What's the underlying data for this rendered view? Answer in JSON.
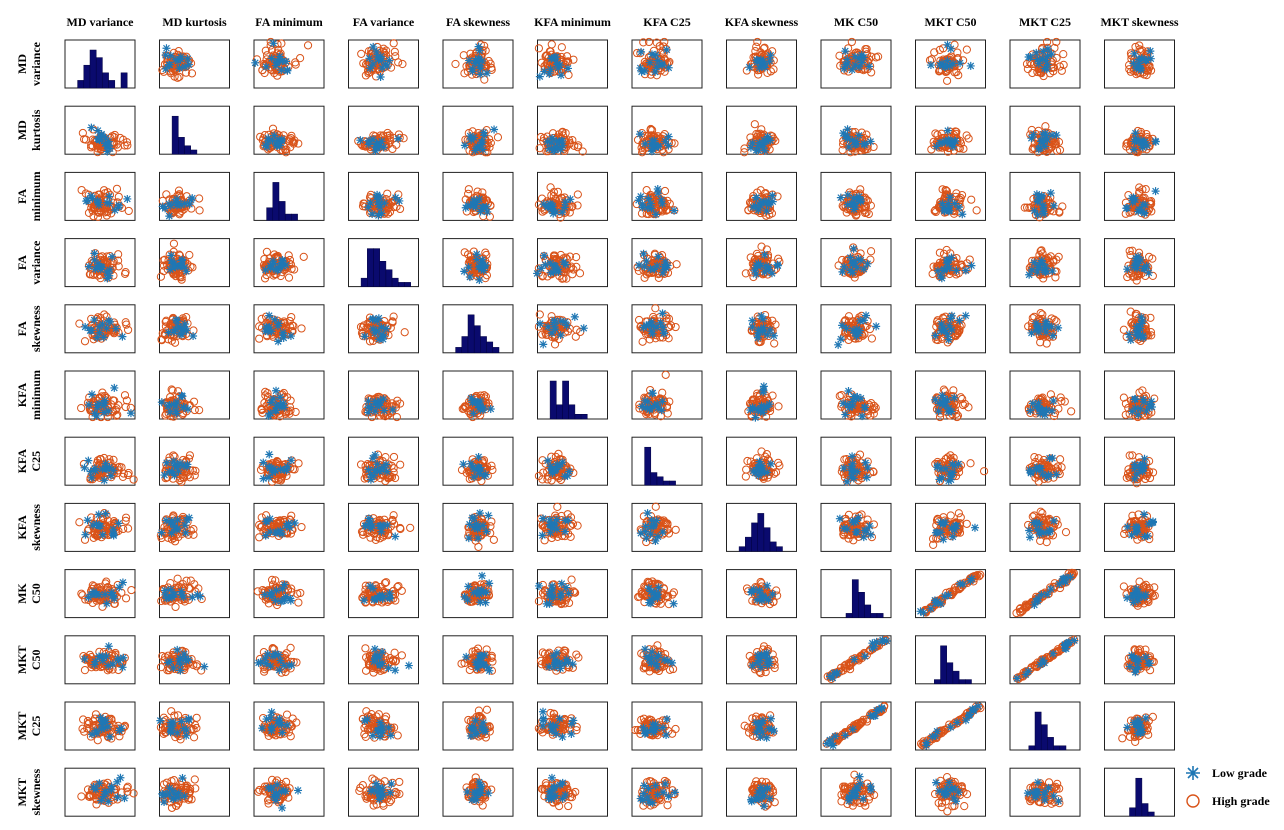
{
  "chart_data": {
    "type": "scatter",
    "subtype": "scatter-matrix",
    "variables": [
      {
        "col_label": "MD variance",
        "row_label": [
          "MD",
          "variance"
        ],
        "hist": [
          1,
          3,
          5,
          4,
          2,
          1,
          0,
          2
        ]
      },
      {
        "col_label": "MD kurtosis",
        "row_label": [
          "MD",
          "kurtosis"
        ],
        "hist": [
          9,
          4,
          2,
          1,
          0,
          0,
          0,
          0
        ]
      },
      {
        "col_label": "FA minimum",
        "row_label": [
          "FA",
          "minimum"
        ],
        "hist": [
          2,
          6,
          3,
          1,
          1,
          0,
          0,
          0
        ]
      },
      {
        "col_label": "FA variance",
        "row_label": [
          "FA",
          "variance"
        ],
        "hist": [
          2,
          9,
          9,
          6,
          4,
          2,
          1,
          1
        ]
      },
      {
        "col_label": "FA skewness",
        "row_label": [
          "FA",
          "skewness"
        ],
        "hist": [
          1,
          3,
          7,
          5,
          3,
          2,
          1,
          0
        ]
      },
      {
        "col_label": "KFA minimum",
        "row_label": [
          "KFA",
          "minimum"
        ],
        "hist": [
          8,
          3,
          8,
          3,
          1,
          1,
          0,
          0
        ]
      },
      {
        "col_label": "KFA C25",
        "row_label": [
          "KFA",
          "C25"
        ],
        "hist": [
          9,
          3,
          2,
          1,
          1,
          0,
          0,
          0
        ]
      },
      {
        "col_label": "KFA skewness",
        "row_label": [
          "KFA",
          "skewness"
        ],
        "hist": [
          1,
          3,
          6,
          8,
          5,
          2,
          1,
          0
        ]
      },
      {
        "col_label": "MK C50",
        "row_label": [
          "MK",
          "C50"
        ],
        "hist": [
          0,
          0,
          1,
          9,
          6,
          3,
          1,
          1
        ]
      },
      {
        "col_label": "MKT C50",
        "row_label": [
          "MKT",
          "C50"
        ],
        "hist": [
          0,
          1,
          9,
          5,
          3,
          1,
          1,
          0
        ]
      },
      {
        "col_label": "MKT C25",
        "row_label": [
          "MKT",
          "C25"
        ],
        "hist": [
          0,
          1,
          9,
          6,
          3,
          1,
          1,
          0
        ]
      },
      {
        "col_label": "MKT skewness",
        "row_label": [
          "MKT",
          "skewness"
        ],
        "hist": [
          0,
          0,
          2,
          9,
          3,
          1,
          0,
          0
        ]
      }
    ],
    "legend": [
      {
        "label": "Low grade",
        "marker": "asterisk",
        "color": "#1f77b4"
      },
      {
        "label": "High grade",
        "marker": "circle",
        "color": "#d95319"
      }
    ],
    "legend_placement": "bottom-right",
    "histogram_color": "#0a0a6e",
    "grid": false
  }
}
